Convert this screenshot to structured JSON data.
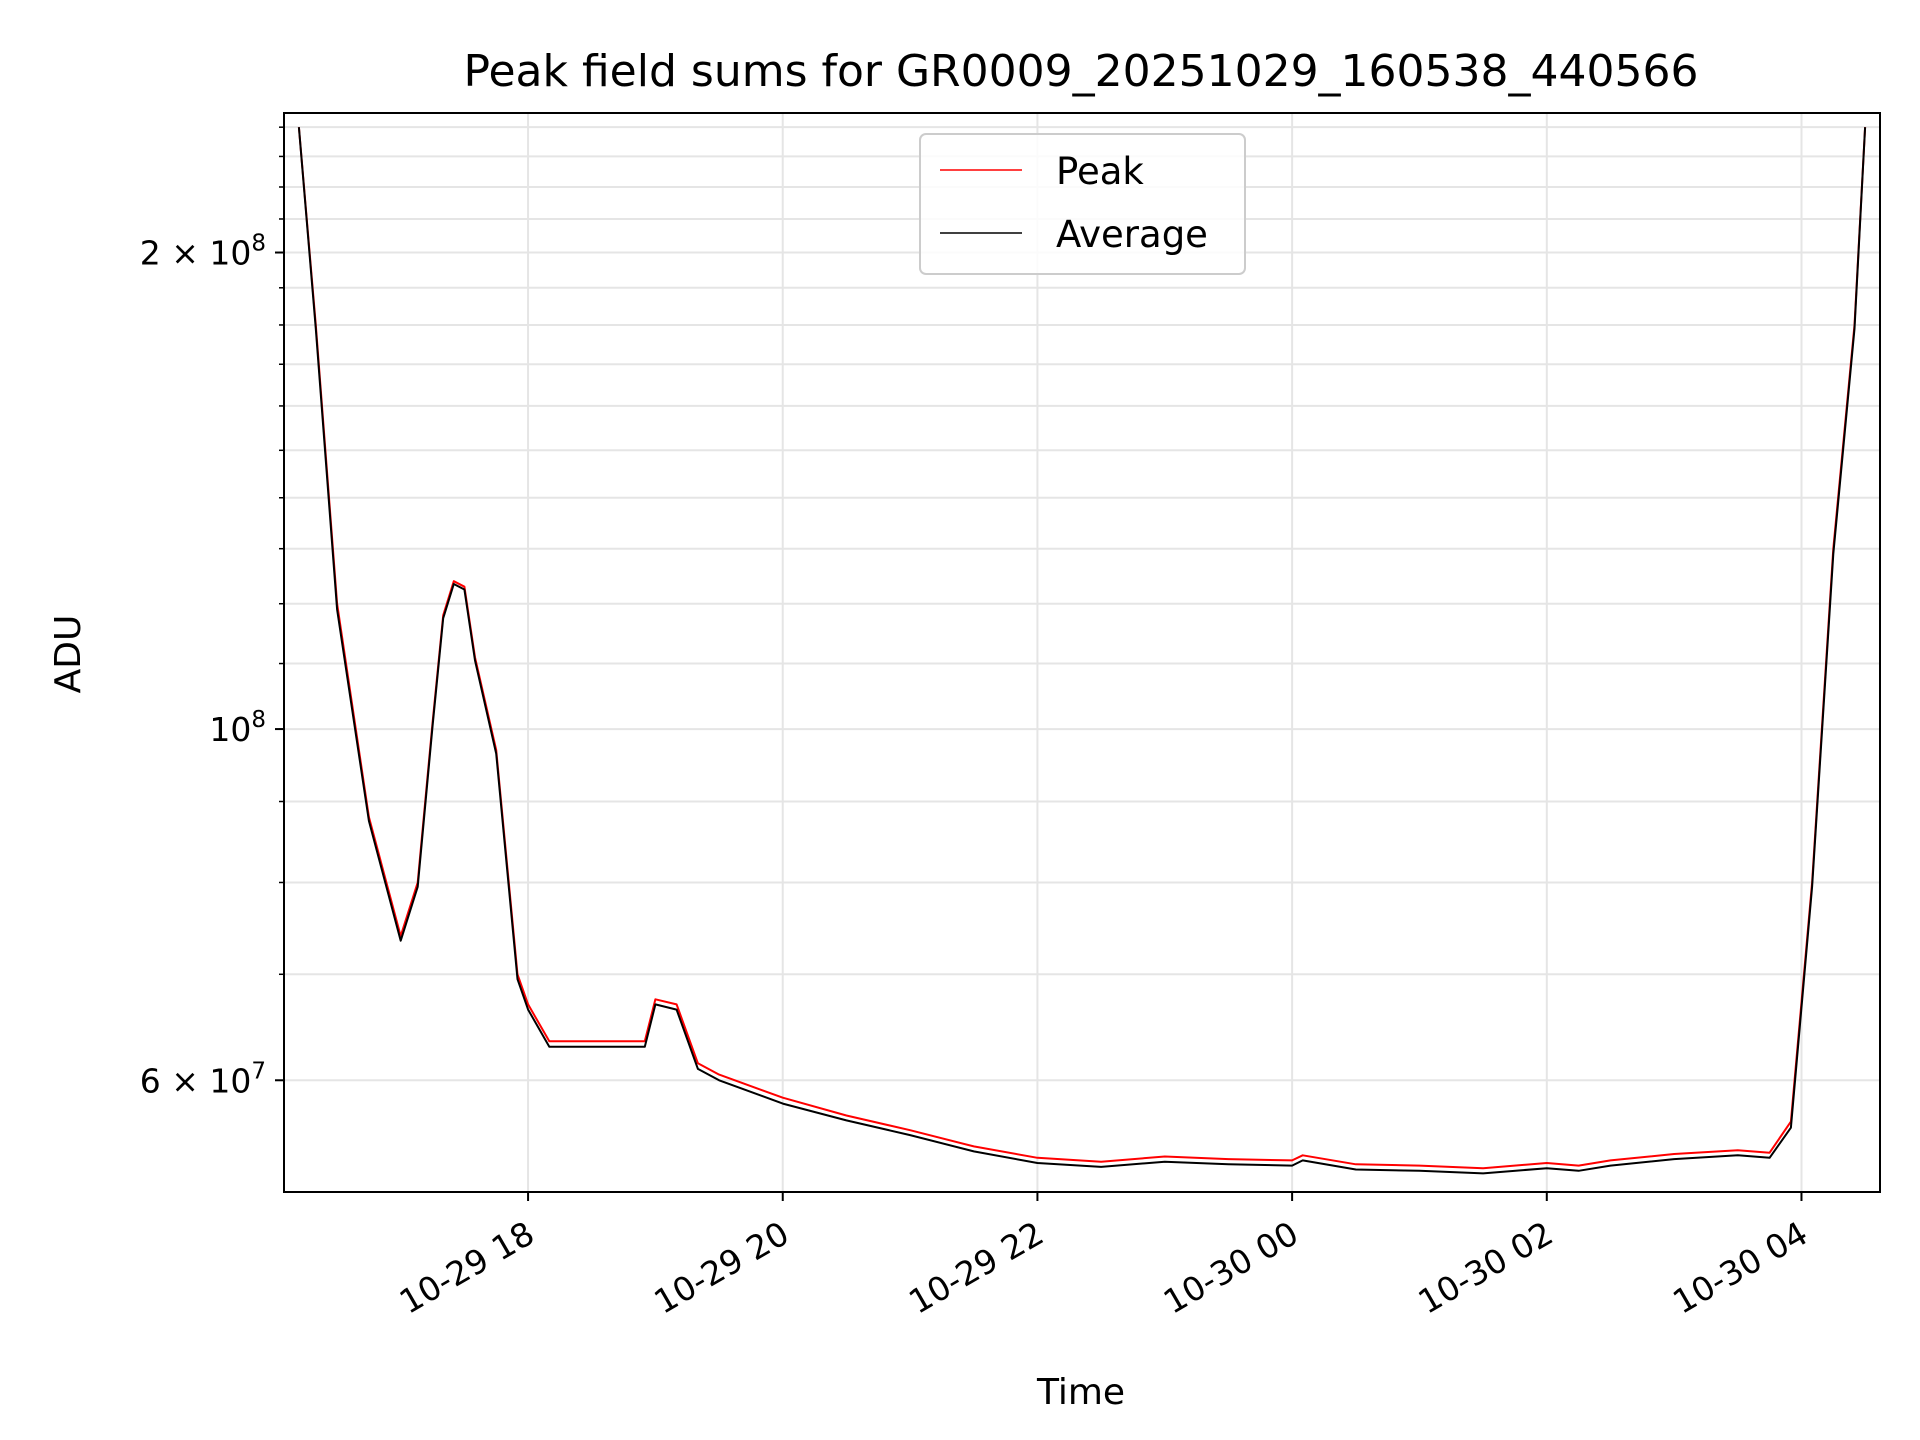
{
  "chart_data": {
    "type": "line",
    "title": "Peak field sums for GR0009_20251029_160538_440566",
    "xlabel": "Time",
    "ylabel": "ADU",
    "yscale": "log",
    "ylim": [
      51000000,
      245000000
    ],
    "xlim": [
      "2025-10-29 16:05",
      "2025-10-30 04:37"
    ],
    "grid": true,
    "legend": {
      "placement": "upper center",
      "entries": [
        "Peak",
        "Average"
      ]
    },
    "x_ticks": [
      {
        "value": "2025-10-29 18:00",
        "label": "10-29 18"
      },
      {
        "value": "2025-10-29 20:00",
        "label": "10-29 20"
      },
      {
        "value": "2025-10-29 22:00",
        "label": "10-29 22"
      },
      {
        "value": "2025-10-30 00:00",
        "label": "10-30 00"
      },
      {
        "value": "2025-10-30 02:00",
        "label": "10-30 02"
      },
      {
        "value": "2025-10-30 04:00",
        "label": "10-30 04"
      }
    ],
    "y_ticks": [
      {
        "value": 60000000,
        "label": "6 × 10⁷",
        "mantissa": "6",
        "exponent": "7"
      },
      {
        "value": 100000000,
        "label": "10⁸",
        "mantissa": "",
        "exponent": "8"
      },
      {
        "value": 200000000,
        "label": "2 × 10⁸",
        "mantissa": "2",
        "exponent": "8"
      }
    ],
    "series": [
      {
        "name": "Peak",
        "color": "#ff0000",
        "x": [
          "2025-10-29 16:12",
          "2025-10-29 16:20",
          "2025-10-29 16:30",
          "2025-10-29 16:45",
          "2025-10-29 17:00",
          "2025-10-29 17:08",
          "2025-10-29 17:15",
          "2025-10-29 17:20",
          "2025-10-29 17:25",
          "2025-10-29 17:30",
          "2025-10-29 17:35",
          "2025-10-29 17:45",
          "2025-10-29 17:55",
          "2025-10-29 18:00",
          "2025-10-29 18:10",
          "2025-10-29 18:30",
          "2025-10-29 18:55",
          "2025-10-29 19:00",
          "2025-10-29 19:10",
          "2025-10-29 19:20",
          "2025-10-29 19:30",
          "2025-10-29 20:00",
          "2025-10-29 20:30",
          "2025-10-29 21:00",
          "2025-10-29 21:30",
          "2025-10-29 22:00",
          "2025-10-29 22:30",
          "2025-10-29 23:00",
          "2025-10-29 23:30",
          "2025-10-30 00:00",
          "2025-10-30 00:05",
          "2025-10-30 00:30",
          "2025-10-30 01:00",
          "2025-10-30 01:30",
          "2025-10-30 02:00",
          "2025-10-30 02:15",
          "2025-10-30 02:30",
          "2025-10-30 03:00",
          "2025-10-30 03:30",
          "2025-10-30 03:45",
          "2025-10-30 03:55",
          "2025-10-30 04:05",
          "2025-10-30 04:15",
          "2025-10-30 04:25",
          "2025-10-30 04:30"
        ],
        "y": [
          240000000,
          180000000,
          120000000,
          88000000,
          74000000,
          80000000,
          101000000,
          118000000,
          124000000,
          123000000,
          111000000,
          97000000,
          70000000,
          67000000,
          63500000,
          63500000,
          63500000,
          67500000,
          67000000,
          61500000,
          60500000,
          58500000,
          57000000,
          55800000,
          54500000,
          53600000,
          53300000,
          53700000,
          53500000,
          53400000,
          53800000,
          53100000,
          53000000,
          52800000,
          53200000,
          53000000,
          53400000,
          53900000,
          54200000,
          54000000,
          56500000,
          80000000,
          130000000,
          180000000,
          240000000
        ]
      },
      {
        "name": "Average",
        "color": "#000000",
        "x": [
          "2025-10-29 16:12",
          "2025-10-29 16:20",
          "2025-10-29 16:30",
          "2025-10-29 16:45",
          "2025-10-29 17:00",
          "2025-10-29 17:08",
          "2025-10-29 17:15",
          "2025-10-29 17:20",
          "2025-10-29 17:25",
          "2025-10-29 17:30",
          "2025-10-29 17:35",
          "2025-10-29 17:45",
          "2025-10-29 17:55",
          "2025-10-29 18:00",
          "2025-10-29 18:10",
          "2025-10-29 18:30",
          "2025-10-29 18:55",
          "2025-10-29 19:00",
          "2025-10-29 19:10",
          "2025-10-29 19:20",
          "2025-10-29 19:30",
          "2025-10-29 20:00",
          "2025-10-29 20:30",
          "2025-10-29 21:00",
          "2025-10-29 21:30",
          "2025-10-29 22:00",
          "2025-10-29 22:30",
          "2025-10-29 23:00",
          "2025-10-29 23:30",
          "2025-10-30 00:00",
          "2025-10-30 00:05",
          "2025-10-30 00:30",
          "2025-10-30 01:00",
          "2025-10-30 01:30",
          "2025-10-30 02:00",
          "2025-10-30 02:15",
          "2025-10-30 02:30",
          "2025-10-30 03:00",
          "2025-10-30 03:30",
          "2025-10-30 03:45",
          "2025-10-30 03:55",
          "2025-10-30 04:05",
          "2025-10-30 04:15",
          "2025-10-30 04:25",
          "2025-10-30 04:30"
        ],
        "y": [
          240000000,
          179000000,
          119000000,
          87500000,
          73500000,
          79500000,
          100500000,
          117500000,
          123500000,
          122500000,
          110500000,
          96500000,
          69500000,
          66500000,
          63000000,
          63000000,
          63000000,
          67000000,
          66500000,
          61000000,
          60000000,
          58000000,
          56600000,
          55400000,
          54100000,
          53200000,
          52900000,
          53300000,
          53100000,
          53000000,
          53400000,
          52700000,
          52600000,
          52400000,
          52800000,
          52600000,
          53000000,
          53500000,
          53800000,
          53600000,
          56000000,
          79500000,
          129000000,
          179000000,
          240000000
        ]
      }
    ]
  }
}
